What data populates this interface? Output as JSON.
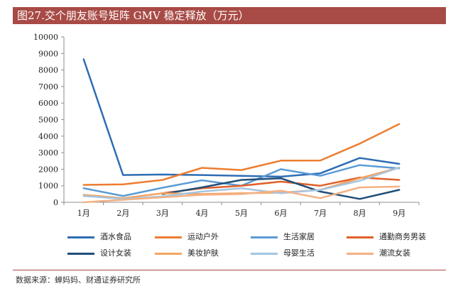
{
  "title": "图27.交个朋友账号矩阵 GMV 稳定释放（万元）",
  "source": "数据来源：蝉妈妈、财通证券研究所",
  "chart_data": {
    "type": "line",
    "categories": [
      "1月",
      "2月",
      "3月",
      "4月",
      "5月",
      "6月",
      "7月",
      "8月",
      "9月"
    ],
    "ylim": [
      0,
      10000
    ],
    "yticks": [
      0,
      1000,
      2000,
      3000,
      4000,
      5000,
      6000,
      7000,
      8000,
      9000,
      10000
    ],
    "grid": false,
    "legend_position": "bottom",
    "series": [
      {
        "name": "酒水食品",
        "color": "#2e6db4",
        "values": [
          8650,
          1650,
          1680,
          1650,
          1600,
          1550,
          1750,
          2680,
          2320
        ]
      },
      {
        "name": "运动户外",
        "color": "#ed7d31",
        "values": [
          1050,
          1080,
          1350,
          2080,
          1950,
          2520,
          2530,
          3550,
          4730
        ]
      },
      {
        "name": "生活家居",
        "color": "#5b9bd5",
        "values": [
          850,
          380,
          880,
          1330,
          1000,
          2000,
          1600,
          2250,
          2050
        ]
      },
      {
        "name": "通勤商务男装",
        "color": "#e0602a",
        "values": [
          null,
          null,
          550,
          850,
          1000,
          1250,
          1000,
          1500,
          1350
        ]
      },
      {
        "name": "设计女装",
        "color": "#1f4e79",
        "values": [
          null,
          null,
          500,
          900,
          1350,
          1450,
          650,
          200,
          750
        ]
      },
      {
        "name": "美妆护肤",
        "color": "#f4a460",
        "values": [
          450,
          250,
          550,
          500,
          550,
          580,
          750,
          1450,
          2100
        ]
      },
      {
        "name": "母婴生活",
        "color": "#a5c5e0",
        "values": [
          380,
          200,
          350,
          650,
          850,
          550,
          750,
          1300,
          2100
        ]
      },
      {
        "name": "潮流女装",
        "color": "#f4b183",
        "values": [
          0,
          150,
          300,
          450,
          500,
          700,
          250,
          900,
          950
        ]
      }
    ]
  }
}
